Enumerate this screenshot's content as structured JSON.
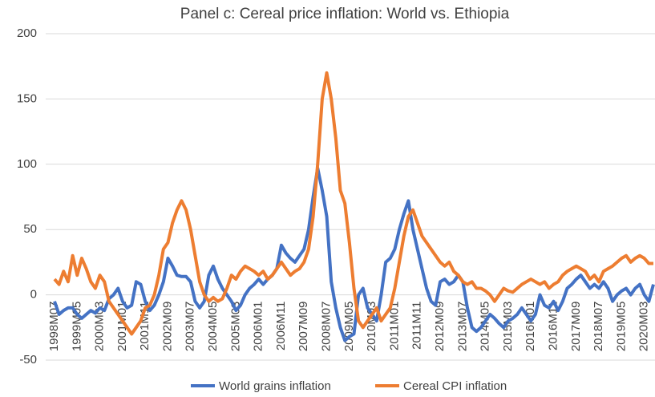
{
  "chart_data": {
    "type": "line",
    "title": "Panel c: Cereal price inflation: World vs. Ethiopia",
    "categories": [
      "1998M07",
      null,
      null,
      null,
      null,
      "1999M05",
      null,
      null,
      null,
      null,
      "2000M03",
      null,
      null,
      null,
      null,
      "2001M01",
      null,
      null,
      null,
      null,
      "2001M11",
      null,
      null,
      null,
      null,
      "2002M09",
      null,
      null,
      null,
      null,
      "2003M07",
      null,
      null,
      null,
      null,
      "2004M05",
      null,
      null,
      null,
      null,
      "2005M03",
      null,
      null,
      null,
      null,
      "2006M01",
      null,
      null,
      null,
      null,
      "2006M11",
      null,
      null,
      null,
      null,
      "2007M09",
      null,
      null,
      null,
      null,
      "2008M07",
      null,
      null,
      null,
      null,
      "2009M05",
      null,
      null,
      null,
      null,
      "2010M03",
      null,
      null,
      null,
      null,
      "2011M01",
      null,
      null,
      null,
      null,
      "2011M11",
      null,
      null,
      null,
      null,
      "2012M09",
      null,
      null,
      null,
      null,
      "2013M07",
      null,
      null,
      null,
      null,
      "2014M05",
      null,
      null,
      null,
      null,
      "2015M03",
      null,
      null,
      null,
      null,
      "2016M01",
      null,
      null,
      null,
      null,
      "2016M11",
      null,
      null,
      null,
      null,
      "2017M09",
      null,
      null,
      null,
      null,
      "2018M07",
      null,
      null,
      null,
      null,
      "2019M05",
      null,
      null,
      null,
      null,
      "2020M03",
      null,
      null
    ],
    "series": [
      {
        "name": "World grains inflation",
        "color": "#4472c4",
        "values": [
          -5,
          -15,
          -12,
          -10,
          -10,
          -15,
          -18,
          -15,
          -12,
          -14,
          -10,
          -12,
          -3,
          0,
          5,
          -5,
          -10,
          -8,
          10,
          8,
          -5,
          -12,
          -8,
          0,
          10,
          28,
          22,
          15,
          14,
          14,
          10,
          -5,
          -10,
          -5,
          15,
          22,
          12,
          5,
          0,
          -5,
          -12,
          -8,
          0,
          5,
          8,
          12,
          8,
          12,
          15,
          20,
          38,
          32,
          28,
          25,
          30,
          35,
          50,
          75,
          97,
          80,
          60,
          10,
          -10,
          -25,
          -35,
          -32,
          -30,
          0,
          5,
          -10,
          -15,
          -20,
          0,
          25,
          28,
          35,
          50,
          62,
          72,
          50,
          35,
          20,
          5,
          -5,
          -8,
          10,
          12,
          8,
          10,
          15,
          10,
          -10,
          -25,
          -28,
          -25,
          -20,
          -15,
          -18,
          -22,
          -25,
          -20,
          -18,
          -15,
          -10,
          -15,
          -20,
          -15,
          0,
          -8,
          -10,
          -5,
          -12,
          -5,
          5,
          8,
          12,
          15,
          10,
          5,
          8,
          5,
          10,
          5,
          -5,
          0,
          3,
          5,
          0,
          5,
          8,
          0,
          -5,
          8
        ]
      },
      {
        "name": "Cereal CPI inflation",
        "color": "#ed7d31",
        "values": [
          12,
          8,
          18,
          10,
          30,
          15,
          28,
          20,
          10,
          5,
          15,
          10,
          -5,
          -10,
          -15,
          -20,
          -25,
          -30,
          -25,
          -20,
          -10,
          -8,
          0,
          15,
          35,
          40,
          55,
          65,
          72,
          65,
          50,
          30,
          10,
          0,
          -5,
          -2,
          -5,
          -3,
          5,
          15,
          12,
          18,
          22,
          20,
          18,
          15,
          18,
          12,
          15,
          20,
          25,
          20,
          15,
          18,
          20,
          25,
          35,
          60,
          100,
          150,
          170,
          150,
          120,
          80,
          70,
          40,
          5,
          -20,
          -25,
          -20,
          -15,
          -10,
          -20,
          -15,
          -10,
          5,
          25,
          45,
          60,
          65,
          55,
          45,
          40,
          35,
          30,
          25,
          22,
          25,
          18,
          15,
          10,
          8,
          10,
          5,
          5,
          3,
          0,
          -5,
          0,
          5,
          3,
          2,
          5,
          8,
          10,
          12,
          10,
          8,
          10,
          5,
          8,
          10,
          15,
          18,
          20,
          22,
          20,
          18,
          12,
          15,
          10,
          18,
          20,
          22,
          25,
          28,
          30,
          25,
          28,
          30,
          28,
          24,
          24
        ]
      }
    ],
    "ylim": [
      -50,
      200
    ],
    "yticks": [
      -50,
      0,
      50,
      100,
      150,
      200
    ],
    "grid": true
  }
}
